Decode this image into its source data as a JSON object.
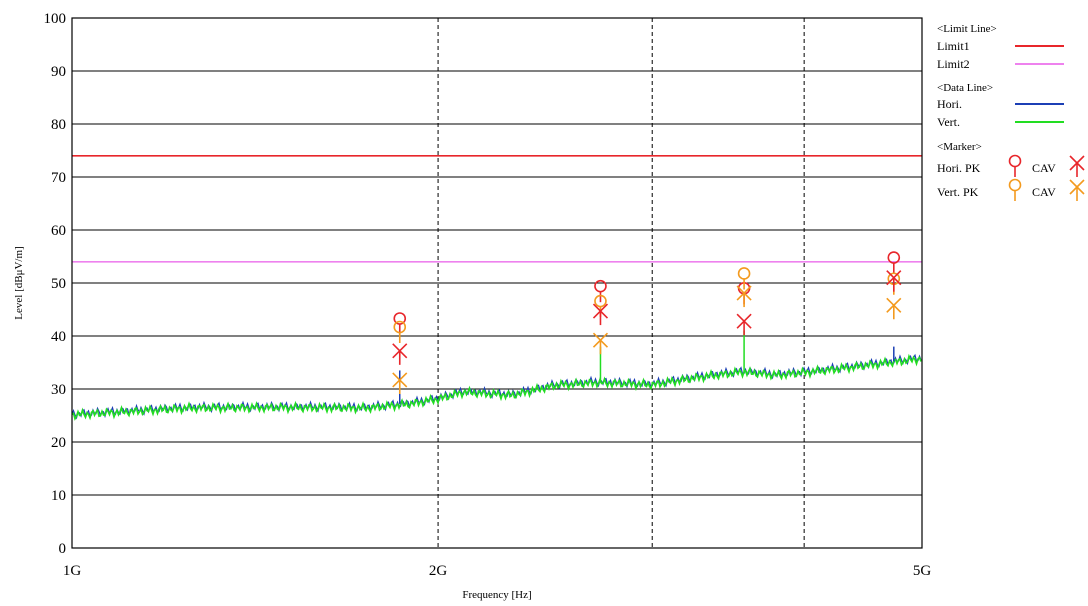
{
  "chart_data": {
    "type": "line",
    "xlabel": "Frequency [Hz]",
    "ylabel": "Level [dBμV/m]",
    "x_scale": "log",
    "xlim": [
      1000000000,
      5000000000
    ],
    "ylim": [
      0,
      100
    ],
    "x_ticks": [
      {
        "value": 1000000000,
        "label": "1G"
      },
      {
        "value": 2000000000,
        "label": "2G"
      },
      {
        "value": 5000000000,
        "label": "5G"
      }
    ],
    "x_extra_grid": [
      3000000000,
      4000000000
    ],
    "y_ticks": [
      0,
      10,
      20,
      30,
      40,
      50,
      60,
      70,
      80,
      90,
      100
    ],
    "grid": true,
    "legend_position": "right",
    "limit_lines": [
      {
        "name": "Limit1",
        "value": 74,
        "color": "#e8262b"
      },
      {
        "name": "Limit2",
        "value": 54,
        "color": "#ee82ee"
      }
    ],
    "series": [
      {
        "name": "Hori.",
        "color": "#1c3fb5",
        "x": [
          1000000000,
          1250000000,
          1500000000,
          1750000000,
          1900000000,
          2000000000,
          2100000000,
          2300000000,
          2500000000,
          2700000000,
          3000000000,
          3300000000,
          3560000000,
          3800000000,
          4200000000,
          4600000000,
          5000000000
        ],
        "y": [
          25.3,
          26.6,
          26.7,
          26.6,
          27.4,
          28.3,
          29.6,
          29.0,
          30.9,
          31.4,
          31.0,
          32.5,
          33.4,
          32.8,
          33.8,
          34.9,
          35.9
        ]
      },
      {
        "name": "Vert.",
        "color": "#22dd22",
        "x": [
          1000000000,
          1250000000,
          1500000000,
          1750000000,
          1900000000,
          2000000000,
          2100000000,
          2300000000,
          2500000000,
          2700000000,
          3000000000,
          3300000000,
          3560000000,
          3800000000,
          4200000000,
          4600000000,
          5000000000
        ],
        "y": [
          25.1,
          26.4,
          26.5,
          26.4,
          27.2,
          28.1,
          29.4,
          28.8,
          30.7,
          31.2,
          30.8,
          32.3,
          33.2,
          32.6,
          33.6,
          34.7,
          35.7
        ]
      }
    ],
    "spikes": [
      {
        "series": "Hori.",
        "x": 1860000000,
        "y": 33.5
      },
      {
        "series": "Vert.",
        "x": 2720000000,
        "y": 38
      },
      {
        "series": "Vert.",
        "x": 3570000000,
        "y": 41
      },
      {
        "series": "Hori.",
        "x": 4740000000,
        "y": 38
      }
    ],
    "markers": {
      "hori_pk": {
        "label": "Hori.  PK",
        "color": "#e8262b",
        "points": [
          [
            1860000000,
            43.3
          ],
          [
            2720000000,
            49.4
          ],
          [
            3570000000,
            49.0
          ],
          [
            4740000000,
            54.8
          ]
        ]
      },
      "hori_cav": {
        "label": "CAV",
        "color": "#e8262b",
        "points": [
          [
            1860000000,
            37.2
          ],
          [
            2720000000,
            44.7
          ],
          [
            3570000000,
            42.8
          ],
          [
            4740000000,
            51.0
          ]
        ]
      },
      "vert_pk": {
        "label": "Vert.  PK",
        "color": "#f39a1e",
        "points": [
          [
            1860000000,
            41.7
          ],
          [
            2720000000,
            46.6
          ],
          [
            3570000000,
            51.8
          ],
          [
            4740000000,
            50.8
          ]
        ]
      },
      "vert_cav": {
        "label": "CAV",
        "color": "#f39a1e",
        "points": [
          [
            1860000000,
            31.7
          ],
          [
            2720000000,
            39.2
          ],
          [
            3570000000,
            48.1
          ],
          [
            4740000000,
            45.8
          ]
        ]
      }
    },
    "legend": {
      "limit_header": "<Limit Line>",
      "data_header": "<Data Line>",
      "marker_header": "<Marker>"
    }
  }
}
